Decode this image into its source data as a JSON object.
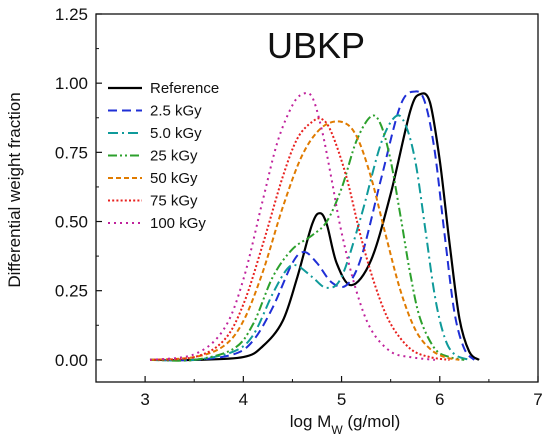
{
  "chart_data": {
    "type": "line",
    "title": "UBKP",
    "xlabel": {
      "prefix": "log M",
      "subscript": "W",
      "suffix": " (g/mol)"
    },
    "ylabel": "Differential weight fraction",
    "xlim": [
      2.5,
      7
    ],
    "ylim": [
      -0.08,
      1.25
    ],
    "xticks": [
      3,
      4,
      5,
      6,
      7
    ],
    "xtick_labels": [
      "3",
      "4",
      "5",
      "6",
      "7"
    ],
    "yticks": [
      0,
      0.25,
      0.5,
      0.75,
      1,
      1.25
    ],
    "ytick_labels": [
      "0.00",
      "0.25",
      "0.50",
      "0.75",
      "1.00",
      "1.25"
    ],
    "grid": false,
    "legend_position": "upper-left",
    "series": [
      {
        "name": "Reference",
        "color": "#000000",
        "dash": "solid",
        "x": [
          3.05,
          3.5,
          4.0,
          4.2,
          4.4,
          4.55,
          4.7,
          4.78,
          4.85,
          4.95,
          5.1,
          5.3,
          5.5,
          5.7,
          5.8,
          5.9,
          6.0,
          6.1,
          6.2,
          6.3,
          6.4
        ],
        "y": [
          0.0,
          0.0,
          0.01,
          0.05,
          0.14,
          0.3,
          0.49,
          0.53,
          0.49,
          0.35,
          0.27,
          0.36,
          0.6,
          0.9,
          0.96,
          0.93,
          0.72,
          0.42,
          0.15,
          0.03,
          0.0
        ]
      },
      {
        "name": "2.5 kGy",
        "color": "#1f2fd6",
        "dash": "dashed",
        "x": [
          3.05,
          3.5,
          3.9,
          4.1,
          4.3,
          4.5,
          4.62,
          4.75,
          4.9,
          5.05,
          5.2,
          5.4,
          5.6,
          5.75,
          5.85,
          5.95,
          6.05,
          6.15,
          6.25,
          6.35
        ],
        "y": [
          0.0,
          0.0,
          0.02,
          0.07,
          0.19,
          0.35,
          0.39,
          0.35,
          0.28,
          0.27,
          0.37,
          0.65,
          0.92,
          0.97,
          0.93,
          0.75,
          0.45,
          0.17,
          0.04,
          0.0
        ]
      },
      {
        "name": "5.0 kGy",
        "color": "#0f9a9a",
        "dash": "dashdot",
        "x": [
          3.05,
          3.5,
          3.9,
          4.1,
          4.3,
          4.45,
          4.55,
          4.7,
          4.85,
          5.0,
          5.2,
          5.4,
          5.55,
          5.65,
          5.75,
          5.85,
          5.95,
          6.05,
          6.15,
          6.3
        ],
        "y": [
          0.0,
          0.0,
          0.03,
          0.09,
          0.24,
          0.33,
          0.34,
          0.3,
          0.26,
          0.3,
          0.52,
          0.78,
          0.88,
          0.85,
          0.72,
          0.48,
          0.23,
          0.08,
          0.02,
          0.0
        ]
      },
      {
        "name": "25 kGy",
        "color": "#2ca02c",
        "dash": "dashdotdot",
        "x": [
          3.05,
          3.5,
          3.9,
          4.1,
          4.3,
          4.5,
          4.7,
          4.85,
          5.0,
          5.15,
          5.3,
          5.4,
          5.5,
          5.6,
          5.7,
          5.8,
          5.95,
          6.1,
          6.25
        ],
        "y": [
          0.0,
          0.0,
          0.04,
          0.13,
          0.3,
          0.4,
          0.45,
          0.5,
          0.62,
          0.79,
          0.88,
          0.85,
          0.72,
          0.52,
          0.31,
          0.15,
          0.04,
          0.01,
          0.0
        ]
      },
      {
        "name": "50 kGy",
        "color": "#e07b00",
        "dash": "shortdash",
        "x": [
          3.05,
          3.5,
          3.8,
          4.0,
          4.2,
          4.4,
          4.6,
          4.8,
          5.0,
          5.15,
          5.3,
          5.45,
          5.6,
          5.75,
          5.9,
          6.05,
          6.2
        ],
        "y": [
          0.0,
          0.01,
          0.05,
          0.14,
          0.32,
          0.55,
          0.74,
          0.84,
          0.86,
          0.81,
          0.66,
          0.45,
          0.25,
          0.11,
          0.04,
          0.01,
          0.0
        ]
      },
      {
        "name": "75 kGy",
        "color": "#e8201e",
        "dash": "dotted",
        "x": [
          3.05,
          3.5,
          3.8,
          4.0,
          4.2,
          4.4,
          4.55,
          4.7,
          4.8,
          4.9,
          5.05,
          5.2,
          5.35,
          5.5,
          5.7,
          5.9,
          6.1
        ],
        "y": [
          0.0,
          0.01,
          0.07,
          0.2,
          0.42,
          0.66,
          0.8,
          0.86,
          0.87,
          0.82,
          0.66,
          0.44,
          0.26,
          0.13,
          0.04,
          0.01,
          0.0
        ]
      },
      {
        "name": "100 kGy",
        "color": "#c0229c",
        "dash": "sparse-dotted",
        "x": [
          3.05,
          3.5,
          3.8,
          4.0,
          4.2,
          4.35,
          4.5,
          4.6,
          4.7,
          4.8,
          4.9,
          5.0,
          5.15,
          5.3,
          5.5,
          5.7,
          5.95
        ],
        "y": [
          0.0,
          0.02,
          0.11,
          0.29,
          0.58,
          0.79,
          0.92,
          0.96,
          0.95,
          0.83,
          0.65,
          0.46,
          0.25,
          0.11,
          0.03,
          0.01,
          0.0
        ]
      }
    ]
  }
}
